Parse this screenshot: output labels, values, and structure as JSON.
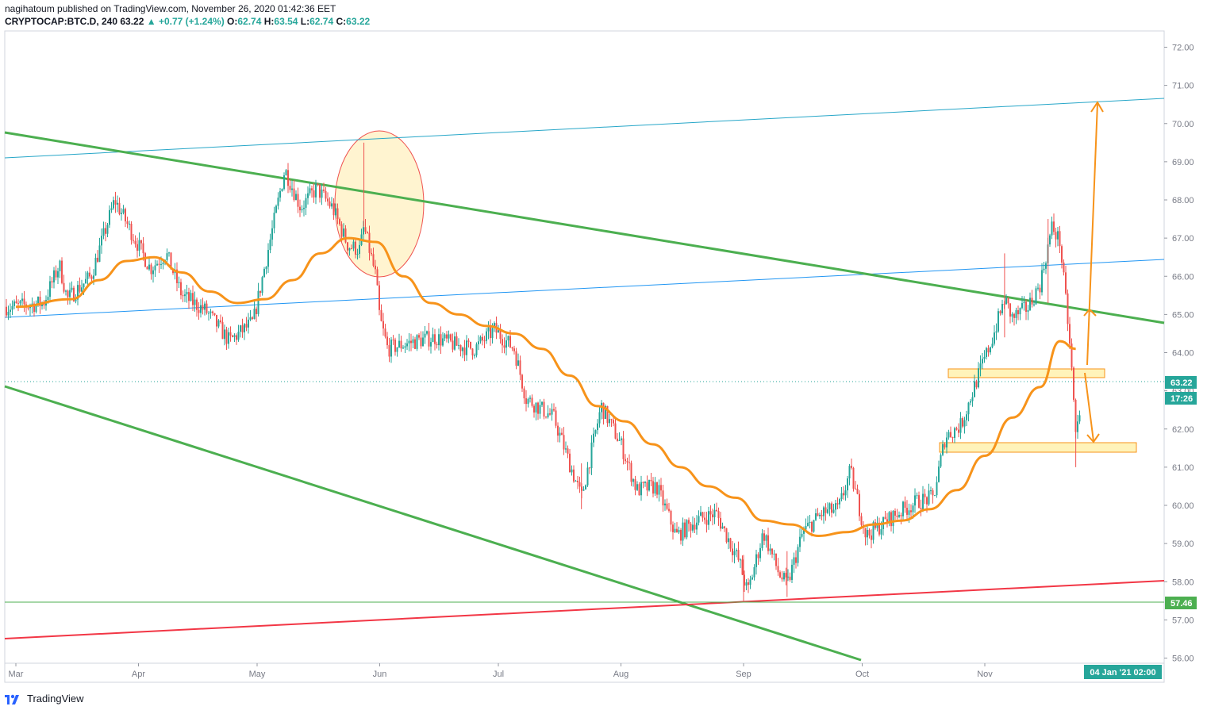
{
  "header": {
    "publisher_line": "nagihatoum published on TradingView.com, November 26, 2020 01:42:36 EET",
    "symbol": "CRYPTOCAP:BTC.D, 240",
    "last": "63.22",
    "change": "▲ +0.77 (+1.24%)",
    "o_label": "O:",
    "o_value": "62.74",
    "h_label": "H:",
    "h_value": "63.54",
    "l_label": "L:",
    "l_value": "62.74",
    "c_label": "C:",
    "c_value": "63.22"
  },
  "footer": {
    "brand": "TradingView"
  },
  "colors": {
    "up": "#26a69a",
    "down": "#ef5350",
    "ma": "#f7931a",
    "trend_green": "#4caf50",
    "channel_blue": "#2196f3",
    "channel_teal": "#26a6c8",
    "support_red": "#f23645",
    "zone_fill": "#fff2b3",
    "zone_stroke": "#f7931a",
    "circle_fill": "#fff2c8",
    "circle_stroke": "#ef5350"
  },
  "chart_data": {
    "type": "candlestick",
    "y_ticks": [
      "72.00",
      "71.00",
      "70.00",
      "69.00",
      "68.00",
      "67.00",
      "66.00",
      "65.00",
      "64.00",
      "63.00",
      "62.00",
      "61.00",
      "60.00",
      "59.00",
      "58.00",
      "57.00",
      "56.00"
    ],
    "ylim": [
      55.9,
      72.2
    ],
    "x_ticks": [
      "Mar",
      "Apr",
      "May",
      "Jun",
      "Jul",
      "Aug",
      "Sep",
      "Oct",
      "Nov"
    ],
    "price_badge": "63.22",
    "countdown_badge": "17:26",
    "level_badge": "57.46",
    "time_badge": "04 Jan '21  02:00",
    "close_path": [
      [
        "2020-03-01",
        65.2
      ],
      [
        "2020-03-08",
        65.3
      ],
      [
        "2020-03-12",
        66.3
      ],
      [
        "2020-03-14",
        65.4
      ],
      [
        "2020-03-20",
        66.0
      ],
      [
        "2020-03-26",
        68.0
      ],
      [
        "2020-03-30",
        67.2
      ],
      [
        "2020-04-04",
        66.2
      ],
      [
        "2020-04-08",
        66.6
      ],
      [
        "2020-04-12",
        65.5
      ],
      [
        "2020-04-18",
        65.1
      ],
      [
        "2020-04-24",
        64.3
      ],
      [
        "2020-04-30",
        64.8
      ],
      [
        "2020-05-04",
        66.8
      ],
      [
        "2020-05-08",
        68.8
      ],
      [
        "2020-05-12",
        67.8
      ],
      [
        "2020-05-16",
        68.3
      ],
      [
        "2020-05-20",
        67.8
      ],
      [
        "2020-05-24",
        66.8
      ],
      [
        "2020-05-27",
        66.7
      ],
      [
        "2020-05-28",
        67.3
      ],
      [
        "2020-05-31",
        66.0
      ],
      [
        "2020-06-01",
        64.9
      ],
      [
        "2020-06-03",
        64.1
      ],
      [
        "2020-06-10",
        64.3
      ],
      [
        "2020-06-15",
        64.4
      ],
      [
        "2020-06-20",
        64.2
      ],
      [
        "2020-06-25",
        64.1
      ],
      [
        "2020-06-30",
        64.6
      ],
      [
        "2020-07-05",
        64.1
      ],
      [
        "2020-07-08",
        62.8
      ],
      [
        "2020-07-15",
        62.3
      ],
      [
        "2020-07-22",
        60.2
      ],
      [
        "2020-07-27",
        62.6
      ],
      [
        "2020-08-01",
        61.6
      ],
      [
        "2020-08-05",
        60.4
      ],
      [
        "2020-08-10",
        60.5
      ],
      [
        "2020-08-15",
        59.2
      ],
      [
        "2020-08-20",
        59.6
      ],
      [
        "2020-08-25",
        59.8
      ],
      [
        "2020-08-31",
        58.5
      ],
      [
        "2020-09-02",
        57.7
      ],
      [
        "2020-09-06",
        59.3
      ],
      [
        "2020-09-10",
        58.2
      ],
      [
        "2020-09-12",
        57.9
      ],
      [
        "2020-09-16",
        59.3
      ],
      [
        "2020-09-21",
        59.8
      ],
      [
        "2020-09-25",
        59.9
      ],
      [
        "2020-09-28",
        60.9
      ],
      [
        "2020-10-02",
        59.2
      ],
      [
        "2020-10-06",
        59.5
      ],
      [
        "2020-10-10",
        59.8
      ],
      [
        "2020-10-15",
        60.1
      ],
      [
        "2020-10-19",
        60.2
      ],
      [
        "2020-10-22",
        61.8
      ],
      [
        "2020-10-26",
        62.1
      ],
      [
        "2020-10-30",
        63.3
      ],
      [
        "2020-11-03",
        64.4
      ],
      [
        "2020-11-06",
        65.4
      ],
      [
        "2020-11-08",
        64.9
      ],
      [
        "2020-11-12",
        65.2
      ],
      [
        "2020-11-15",
        65.8
      ],
      [
        "2020-11-18",
        67.3
      ],
      [
        "2020-11-20",
        66.9
      ],
      [
        "2020-11-22",
        64.8
      ],
      [
        "2020-11-23",
        63.5
      ],
      [
        "2020-11-24",
        61.8
      ],
      [
        "2020-11-25",
        62.5
      ],
      [
        "2020-11-26",
        63.22
      ]
    ],
    "spikes": [
      [
        "2020-05-28",
        69.5
      ],
      [
        "2020-11-06",
        66.6
      ],
      [
        "2020-11-17",
        67.5
      ],
      [
        "2020-11-24",
        61.0
      ],
      [
        "2020-09-01",
        57.5
      ],
      [
        "2020-09-12",
        57.6
      ],
      [
        "2020-07-22",
        59.9
      ]
    ],
    "ma_path": [
      [
        "2020-03-01",
        65.2
      ],
      [
        "2020-03-15",
        65.4
      ],
      [
        "2020-03-22",
        65.9
      ],
      [
        "2020-03-29",
        66.4
      ],
      [
        "2020-04-05",
        66.5
      ],
      [
        "2020-04-12",
        66.1
      ],
      [
        "2020-04-19",
        65.6
      ],
      [
        "2020-04-26",
        65.3
      ],
      [
        "2020-05-03",
        65.4
      ],
      [
        "2020-05-10",
        65.9
      ],
      [
        "2020-05-17",
        66.6
      ],
      [
        "2020-05-24",
        67.0
      ],
      [
        "2020-05-31",
        66.9
      ],
      [
        "2020-06-07",
        66.0
      ],
      [
        "2020-06-14",
        65.3
      ],
      [
        "2020-06-21",
        65.0
      ],
      [
        "2020-06-28",
        64.7
      ],
      [
        "2020-07-05",
        64.5
      ],
      [
        "2020-07-12",
        64.1
      ],
      [
        "2020-07-19",
        63.4
      ],
      [
        "2020-07-26",
        62.6
      ],
      [
        "2020-08-02",
        62.2
      ],
      [
        "2020-08-09",
        61.6
      ],
      [
        "2020-08-16",
        61.0
      ],
      [
        "2020-08-23",
        60.5
      ],
      [
        "2020-08-30",
        60.2
      ],
      [
        "2020-09-06",
        59.6
      ],
      [
        "2020-09-13",
        59.5
      ],
      [
        "2020-09-20",
        59.2
      ],
      [
        "2020-09-27",
        59.3
      ],
      [
        "2020-10-04",
        59.5
      ],
      [
        "2020-10-11",
        59.6
      ],
      [
        "2020-10-18",
        59.9
      ],
      [
        "2020-10-25",
        60.4
      ],
      [
        "2020-11-01",
        61.3
      ],
      [
        "2020-11-08",
        62.3
      ],
      [
        "2020-11-15",
        63.1
      ],
      [
        "2020-11-20",
        64.3
      ],
      [
        "2020-11-24",
        64.1
      ]
    ]
  }
}
